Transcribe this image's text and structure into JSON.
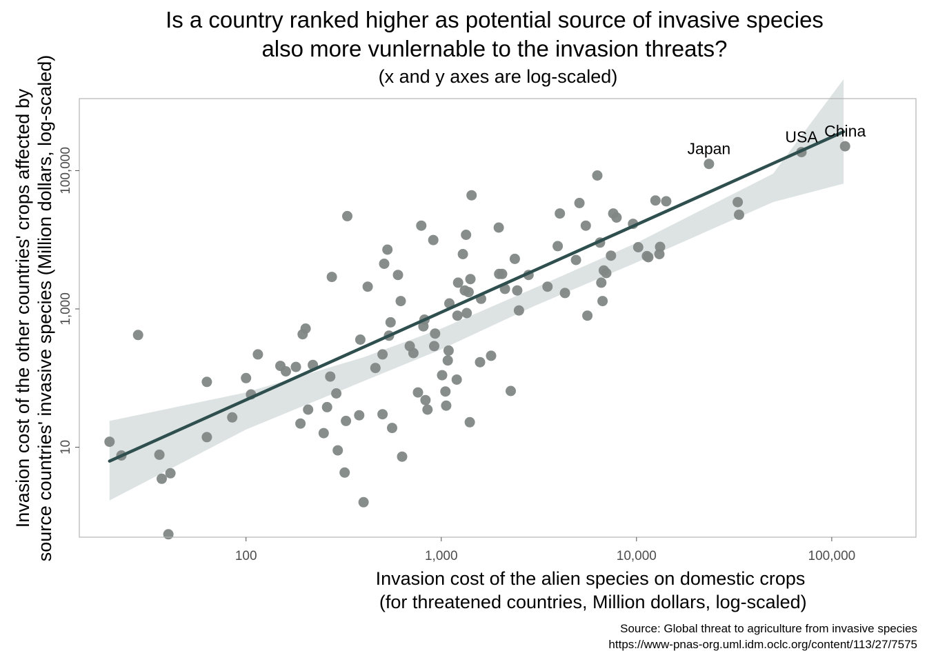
{
  "chart_data": {
    "type": "scatter",
    "title": [
      "Is a country ranked higher as potential source of invasive species",
      "also more vunlernable to the invasion threats?"
    ],
    "subtitle": "(x and y axes are log-scaled)",
    "xlabel": "Invasion cost of the alien species on domestic crops\n (for threatened countries, Million dollars, log-scaled)",
    "ylabel": [
      "Invasion cost of the other countries' crops affected by",
      "source countries' invasive species (Million dollars, log-scaled)"
    ],
    "x_scale": "log10",
    "y_scale": "log10",
    "xlim": [
      14,
      270000
    ],
    "ylim": [
      0.5,
      1100000
    ],
    "x_ticks": [
      {
        "value": 100,
        "label": "100"
      },
      {
        "value": 1000,
        "label": "1,000"
      },
      {
        "value": 10000,
        "label": "10,000"
      },
      {
        "value": 100000,
        "label": "100,000"
      }
    ],
    "y_ticks": [
      {
        "value": 10,
        "label": "10"
      },
      {
        "value": 1000,
        "label": "1,000"
      },
      {
        "value": 100000,
        "label": "100,000"
      }
    ],
    "grid": false,
    "point_color": "#7f8785",
    "line_color": "#2f4f4f",
    "band_color": "#dde3e3",
    "fit_line": {
      "x": [
        20,
        115000
      ],
      "y": [
        6.3,
        365000
      ]
    },
    "confidence_band": {
      "x": [
        20,
        100,
        400,
        1000,
        3000,
        10000,
        50000,
        115000
      ],
      "upper": [
        24,
        62,
        200,
        520,
        2000,
        9000,
        90000,
        2100000
      ],
      "lower": [
        1.7,
        18,
        90,
        260,
        1100,
        4700,
        35000,
        65000
      ]
    },
    "points": [
      {
        "x": 20,
        "y": 12
      },
      {
        "x": 23,
        "y": 7.6
      },
      {
        "x": 28,
        "y": 420
      },
      {
        "x": 36,
        "y": 7.8
      },
      {
        "x": 37,
        "y": 3.5
      },
      {
        "x": 40,
        "y": 0.55
      },
      {
        "x": 41,
        "y": 4.2
      },
      {
        "x": 63,
        "y": 88
      },
      {
        "x": 63,
        "y": 14
      },
      {
        "x": 85,
        "y": 27
      },
      {
        "x": 100,
        "y": 100
      },
      {
        "x": 106,
        "y": 58
      },
      {
        "x": 115,
        "y": 220
      },
      {
        "x": 150,
        "y": 150
      },
      {
        "x": 160,
        "y": 125
      },
      {
        "x": 180,
        "y": 145
      },
      {
        "x": 190,
        "y": 22
      },
      {
        "x": 195,
        "y": 430
      },
      {
        "x": 202,
        "y": 520
      },
      {
        "x": 208,
        "y": 35
      },
      {
        "x": 220,
        "y": 155
      },
      {
        "x": 250,
        "y": 16
      },
      {
        "x": 260,
        "y": 38
      },
      {
        "x": 270,
        "y": 105
      },
      {
        "x": 275,
        "y": 2900
      },
      {
        "x": 290,
        "y": 60
      },
      {
        "x": 295,
        "y": 9
      },
      {
        "x": 320,
        "y": 4.3
      },
      {
        "x": 325,
        "y": 24
      },
      {
        "x": 330,
        "y": 22000
      },
      {
        "x": 380,
        "y": 29
      },
      {
        "x": 385,
        "y": 360
      },
      {
        "x": 400,
        "y": 1.6
      },
      {
        "x": 420,
        "y": 2100
      },
      {
        "x": 460,
        "y": 140
      },
      {
        "x": 500,
        "y": 220
      },
      {
        "x": 500,
        "y": 30
      },
      {
        "x": 510,
        "y": 4500
      },
      {
        "x": 530,
        "y": 7200
      },
      {
        "x": 540,
        "y": 410
      },
      {
        "x": 550,
        "y": 640
      },
      {
        "x": 560,
        "y": 19
      },
      {
        "x": 600,
        "y": 3100
      },
      {
        "x": 620,
        "y": 1300
      },
      {
        "x": 630,
        "y": 7.3
      },
      {
        "x": 690,
        "y": 290
      },
      {
        "x": 720,
        "y": 230
      },
      {
        "x": 760,
        "y": 62
      },
      {
        "x": 790,
        "y": 16000
      },
      {
        "x": 810,
        "y": 560
      },
      {
        "x": 820,
        "y": 700
      },
      {
        "x": 830,
        "y": 48
      },
      {
        "x": 850,
        "y": 35
      },
      {
        "x": 910,
        "y": 9900
      },
      {
        "x": 920,
        "y": 290
      },
      {
        "x": 930,
        "y": 440
      },
      {
        "x": 1010,
        "y": 110
      },
      {
        "x": 1050,
        "y": 64
      },
      {
        "x": 1060,
        "y": 40
      },
      {
        "x": 1080,
        "y": 180
      },
      {
        "x": 1090,
        "y": 250
      },
      {
        "x": 1100,
        "y": 1200
      },
      {
        "x": 1200,
        "y": 95
      },
      {
        "x": 1210,
        "y": 800
      },
      {
        "x": 1220,
        "y": 2400
      },
      {
        "x": 1290,
        "y": 6200
      },
      {
        "x": 1320,
        "y": 1850
      },
      {
        "x": 1340,
        "y": 11800
      },
      {
        "x": 1350,
        "y": 870
      },
      {
        "x": 1380,
        "y": 1750
      },
      {
        "x": 1400,
        "y": 23
      },
      {
        "x": 1410,
        "y": 2700
      },
      {
        "x": 1430,
        "y": 44000
      },
      {
        "x": 1580,
        "y": 170
      },
      {
        "x": 1600,
        "y": 1400
      },
      {
        "x": 1800,
        "y": 210
      },
      {
        "x": 1970,
        "y": 15000
      },
      {
        "x": 1980,
        "y": 3200
      },
      {
        "x": 2050,
        "y": 3200
      },
      {
        "x": 2120,
        "y": 1950
      },
      {
        "x": 2270,
        "y": 65
      },
      {
        "x": 2380,
        "y": 5300
      },
      {
        "x": 2450,
        "y": 1850
      },
      {
        "x": 2500,
        "y": 950
      },
      {
        "x": 2800,
        "y": 3100
      },
      {
        "x": 3500,
        "y": 2100
      },
      {
        "x": 3950,
        "y": 8100
      },
      {
        "x": 4050,
        "y": 24000
      },
      {
        "x": 4300,
        "y": 1700
      },
      {
        "x": 4900,
        "y": 5100
      },
      {
        "x": 5100,
        "y": 34000
      },
      {
        "x": 5500,
        "y": 16000
      },
      {
        "x": 5600,
        "y": 800
      },
      {
        "x": 6300,
        "y": 85000
      },
      {
        "x": 6500,
        "y": 9100
      },
      {
        "x": 6600,
        "y": 2400
      },
      {
        "x": 6700,
        "y": 1300
      },
      {
        "x": 6800,
        "y": 3600
      },
      {
        "x": 7000,
        "y": 3300
      },
      {
        "x": 7400,
        "y": 5900
      },
      {
        "x": 7600,
        "y": 24000
      },
      {
        "x": 7900,
        "y": 21000
      },
      {
        "x": 9600,
        "y": 17000
      },
      {
        "x": 10200,
        "y": 7800
      },
      {
        "x": 11300,
        "y": 5800
      },
      {
        "x": 11500,
        "y": 5600
      },
      {
        "x": 12500,
        "y": 37000
      },
      {
        "x": 13100,
        "y": 6200
      },
      {
        "x": 13200,
        "y": 7900
      },
      {
        "x": 14200,
        "y": 36000
      },
      {
        "x": 23500,
        "y": 125000
      },
      {
        "x": 33000,
        "y": 35000
      },
      {
        "x": 33500,
        "y": 23000
      },
      {
        "x": 70000,
        "y": 185000
      },
      {
        "x": 117000,
        "y": 225000
      }
    ],
    "annotations": [
      {
        "label": "Japan",
        "x": 23500,
        "y": 125000
      },
      {
        "label": "USA",
        "x": 70000,
        "y": 185000
      },
      {
        "label": "China",
        "x": 117000,
        "y": 225000
      }
    ]
  },
  "caption": [
    "Source: Global threat to agriculture from invasive species",
    "https://www-pnas-org.uml.idm.oclc.org/content/113/27/7575"
  ]
}
